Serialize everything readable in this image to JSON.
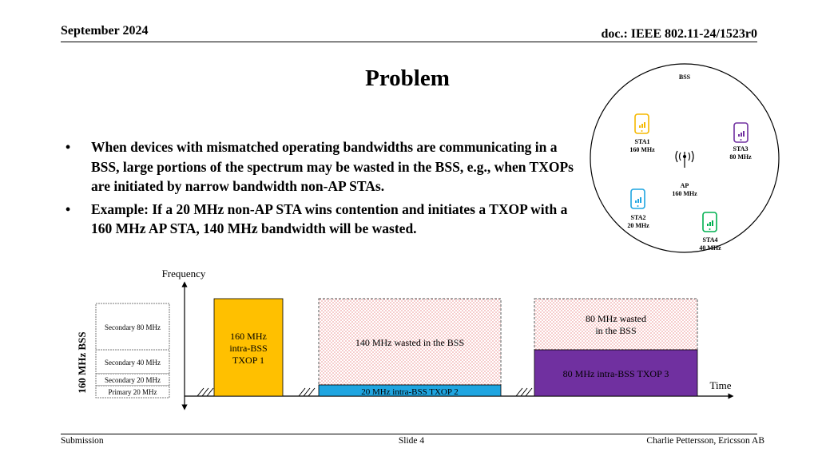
{
  "header": {
    "date": "September 2024",
    "doc": "doc.: IEEE 802.11-24/1523r0"
  },
  "title": "Problem",
  "bullets": [
    "When devices with mismatched operating bandwidths are communicating in a BSS, large portions of the spectrum may be wasted in the BSS, e.g., when TXOPs are initiated by narrow bandwidth non-AP STAs.",
    "Example: If a 20 MHz non-AP STA wins contention and initiates a TXOP with a 160 MHz AP STA, 140 MHz bandwidth will be wasted."
  ],
  "bss_diagram": {
    "label": "BSS",
    "stations": [
      {
        "name": "STA1",
        "bw": "160 MHz",
        "color": "#f5b800"
      },
      {
        "name": "STA3",
        "bw": "80 MHz",
        "color": "#7030a0"
      },
      {
        "name": "AP",
        "bw": "160 MHz",
        "color": "#000000"
      },
      {
        "name": "STA2",
        "bw": "20 MHz",
        "color": "#1fa5e0"
      },
      {
        "name": "STA4",
        "bw": "40 MHz",
        "color": "#00b050"
      }
    ]
  },
  "spectrum": {
    "y_axis_label": "Frequency",
    "x_axis_label": "Time",
    "bss_label": "160 MHz BSS",
    "channels": [
      "Secondary 80 MHz",
      "Secondary 40 MHz",
      "Secondary 20 MHz",
      "Primary 20 MHz"
    ],
    "txop1": [
      "160 MHz",
      "intra-BSS",
      "TXOP 1"
    ],
    "wasted_140": "140 MHz wasted in the BSS",
    "txop2": "20 MHz intra-BSS TXOP 2",
    "wasted_80": [
      "80 MHz wasted",
      "in the BSS"
    ],
    "txop3": "80 MHz intra-BSS TXOP 3",
    "colors": {
      "txop1": "#ffc000",
      "txop2": "#1fa5e0",
      "txop3": "#7030a0",
      "waste": "#e05050"
    }
  },
  "footer": {
    "left": "Submission",
    "center": "Slide 4",
    "right": "Charlie Pettersson, Ericsson AB"
  }
}
